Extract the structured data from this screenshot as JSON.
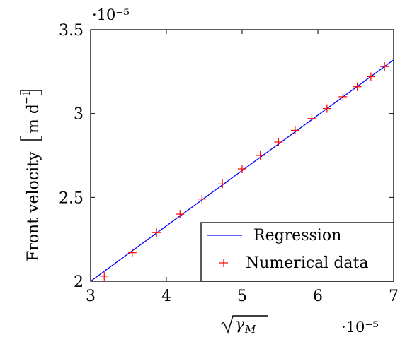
{
  "chart_data": {
    "type": "scatter",
    "x_ticks": [
      "3",
      "4",
      "5",
      "6",
      "7"
    ],
    "y_ticks": [
      "2",
      "2.5",
      "3",
      "3.5"
    ],
    "x_tick_values": [
      3,
      4,
      5,
      6,
      7
    ],
    "y_tick_values": [
      2,
      2.5,
      3,
      3.5
    ],
    "xlim": [
      3,
      7
    ],
    "ylim": [
      2,
      3.5
    ],
    "x_scale_label": "·10⁻⁵",
    "y_scale_label": "·10⁻⁵",
    "xlabel": "√γ_M",
    "xlabel_base": "γ",
    "xlabel_sub": "M",
    "ylabel": "Front velocity [m d⁻¹]",
    "ylabel_text": "Front velocity",
    "ylabel_unit": "m d",
    "ylabel_unit_exp": "−1",
    "grid": false,
    "legend_position": "bottom-right",
    "series": [
      {
        "name": "Regression",
        "kind": "line",
        "color": "#0000ff",
        "x": [
          3.0,
          7.0
        ],
        "y": [
          2.0,
          3.32
        ]
      },
      {
        "name": "Numerical data",
        "kind": "marker",
        "marker": "plus",
        "color": "#ff0000",
        "x": [
          3.18,
          3.55,
          3.87,
          4.18,
          4.47,
          4.74,
          5.0,
          5.24,
          5.48,
          5.7,
          5.92,
          6.12,
          6.33,
          6.52,
          6.7,
          6.88
        ],
        "y": [
          2.03,
          2.17,
          2.29,
          2.4,
          2.49,
          2.58,
          2.67,
          2.75,
          2.83,
          2.9,
          2.97,
          3.03,
          3.1,
          3.16,
          3.22,
          3.28
        ]
      }
    ]
  }
}
